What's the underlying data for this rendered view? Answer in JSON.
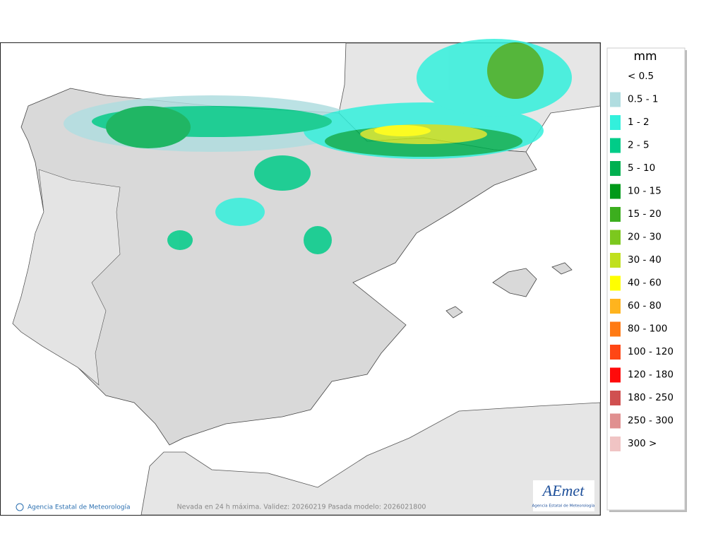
{
  "map": {
    "footer": "Nevada en 24 h máxima. Validez: 20260219 Pasada modelo: 2026021800",
    "credit": "Agencia Estatal de Meteorología",
    "logo": {
      "wordmark": "AEmet",
      "caption": "Agencia Estatal de Meteorología"
    }
  },
  "legend": {
    "unit": "mm",
    "items": [
      {
        "label": "< 0.5"
      },
      {
        "label": "0.5 - 1",
        "color": "#b0dde0"
      },
      {
        "label": "1 - 2",
        "color": "#33f0dc"
      },
      {
        "label": "2 - 5",
        "color": "#00cc88"
      },
      {
        "label": "5 - 10",
        "color": "#00b050"
      },
      {
        "label": "10 - 15",
        "color": "#009a1a"
      },
      {
        "label": "15 - 20",
        "color": "#3cae1e"
      },
      {
        "label": "20 - 30",
        "color": "#7cc81e"
      },
      {
        "label": "30 - 40",
        "color": "#c0e01e"
      },
      {
        "label": "40 - 60",
        "color": "#ffff00"
      },
      {
        "label": "60 - 80",
        "color": "#ffb41e"
      },
      {
        "label": "80 - 100",
        "color": "#ff7a14"
      },
      {
        "label": "100 - 120",
        "color": "#ff4614"
      },
      {
        "label": "120 - 180",
        "color": "#ff0a0a"
      },
      {
        "label": "180 - 250",
        "color": "#d05050"
      },
      {
        "label": "250 - 300",
        "color": "#e09090"
      },
      {
        "label": "300 >",
        "color": "#f0c4c4"
      }
    ]
  }
}
